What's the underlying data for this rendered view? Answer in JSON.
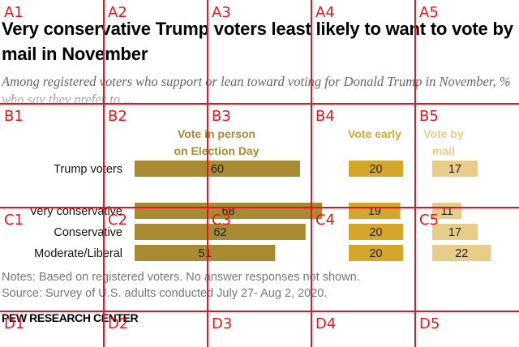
{
  "title": "Very conservative Trump voters least likely to want to vote by mail in November",
  "subtitle": "Among registered voters who support or lean toward voting for Donald Trump in November, % who say they prefer to ...",
  "notes": "Notes: Based on registered voters. No answer responses not shown.",
  "source": "Source: Survey of U.S. adults conducted July 27- Aug 2, 2020.",
  "brand": "PEW RESEARCH CENTER",
  "grid_labels": [
    "A1",
    "A2",
    "A3",
    "A4",
    "A5",
    "B1",
    "B2",
    "B3",
    "B4",
    "B5",
    "C1",
    "C2",
    "C3",
    "C4",
    "C5",
    "D1",
    "D2",
    "D3",
    "D4",
    "D5"
  ],
  "colors": {
    "in_person": "#a88a32",
    "early": "#d4a72c",
    "mail": "#e8cc8a",
    "grid": "#e8141b"
  },
  "chart_data": {
    "type": "bar",
    "orientation": "horizontal",
    "categories": [
      "Trump voters",
      "Very conservative",
      "Conservative",
      "Moderate/Liberal"
    ],
    "series": [
      {
        "name": "Vote in person on Election Day",
        "values": [
          60,
          68,
          62,
          51
        ]
      },
      {
        "name": "Vote early",
        "values": [
          20,
          19,
          20,
          20
        ]
      },
      {
        "name": "Vote by mail",
        "values": [
          17,
          11,
          17,
          22
        ]
      }
    ],
    "series_headers": [
      [
        "Vote in person",
        "on Election Day"
      ],
      [
        "Vote early"
      ],
      [
        "Vote by",
        "mail"
      ]
    ]
  }
}
